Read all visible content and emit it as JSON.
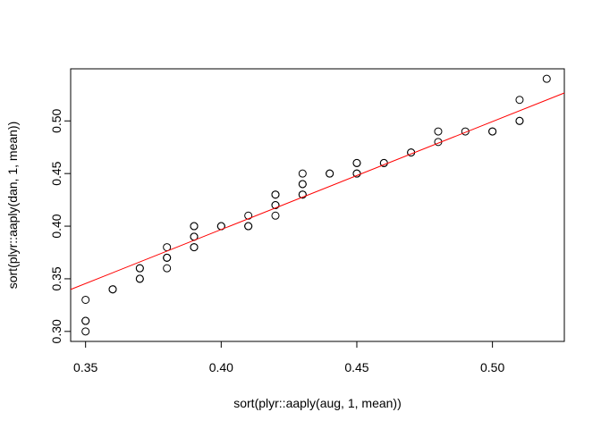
{
  "chart_data": {
    "type": "scatter",
    "title": "",
    "xlabel": "sort(plyr::aaply(aug, 1, mean))",
    "ylabel": "sort(plyr::aaply(dan, 1, mean))",
    "xlim": [
      0.3445,
      0.5265
    ],
    "ylim": [
      0.2905,
      0.5495
    ],
    "x_ticks": [
      0.35,
      0.4,
      0.45,
      0.5
    ],
    "x_tick_labels": [
      "0.35",
      "0.40",
      "0.45",
      "0.50"
    ],
    "y_ticks": [
      0.3,
      0.35,
      0.4,
      0.45,
      0.5
    ],
    "y_tick_labels": [
      "0.30",
      "0.35",
      "0.40",
      "0.45",
      "0.50"
    ],
    "grid": false,
    "legend": "none",
    "point_color": "#000000",
    "line_color": "#ff0000",
    "series": [
      {
        "x": [
          0.35,
          0.35,
          0.35,
          0.35,
          0.36,
          0.36,
          0.37,
          0.37,
          0.37,
          0.37,
          0.38,
          0.38,
          0.38,
          0.38,
          0.38,
          0.39,
          0.39,
          0.39,
          0.39,
          0.39,
          0.39,
          0.4,
          0.4,
          0.41,
          0.41,
          0.41,
          0.42,
          0.42,
          0.42,
          0.42,
          0.42,
          0.43,
          0.43,
          0.43,
          0.43,
          0.43,
          0.44,
          0.44,
          0.45,
          0.45,
          0.45,
          0.45,
          0.46,
          0.46,
          0.47,
          0.47,
          0.48,
          0.48,
          0.49,
          0.5,
          0.5,
          0.51,
          0.51,
          0.51,
          0.52
        ],
        "y": [
          0.3,
          0.31,
          0.31,
          0.33,
          0.34,
          0.34,
          0.35,
          0.35,
          0.36,
          0.36,
          0.36,
          0.37,
          0.37,
          0.37,
          0.38,
          0.38,
          0.38,
          0.39,
          0.39,
          0.4,
          0.4,
          0.4,
          0.4,
          0.4,
          0.4,
          0.41,
          0.41,
          0.42,
          0.42,
          0.43,
          0.43,
          0.43,
          0.43,
          0.44,
          0.44,
          0.45,
          0.45,
          0.45,
          0.45,
          0.45,
          0.46,
          0.46,
          0.46,
          0.46,
          0.47,
          0.47,
          0.48,
          0.49,
          0.49,
          0.49,
          0.49,
          0.5,
          0.5,
          0.52,
          0.54
        ]
      }
    ],
    "fit_line": {
      "intercept": -0.0136,
      "slope": 1.026
    }
  }
}
